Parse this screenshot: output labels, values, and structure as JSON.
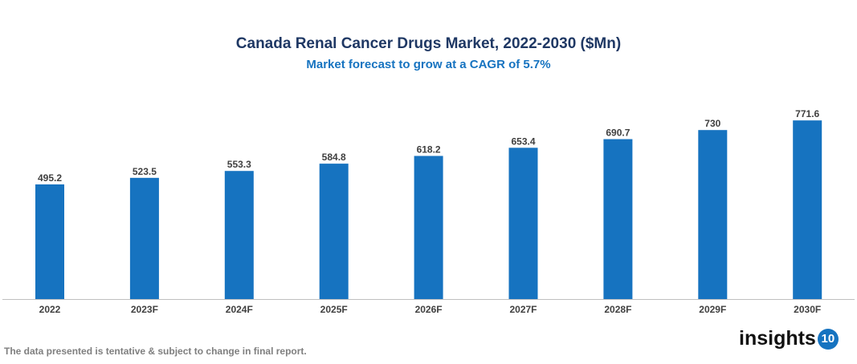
{
  "chart_data": {
    "type": "bar",
    "title": "Canada Renal Cancer Drugs Market, 2022-2030 ($Mn)",
    "subtitle": "Market forecast to grow at a CAGR of 5.7%",
    "categories": [
      "2022",
      "2023F",
      "2024F",
      "2025F",
      "2026F",
      "2027F",
      "2028F",
      "2029F",
      "2030F"
    ],
    "values": [
      495.2,
      523.5,
      553.3,
      584.8,
      618.2,
      653.4,
      690.7,
      730,
      771.6
    ],
    "xlabel": "",
    "ylabel": "",
    "ylim": [
      0,
      800
    ],
    "grid": false,
    "bar_color": "#1673c0"
  },
  "footer": {
    "disclaimer": "The data presented is tentative & subject to change in final report."
  },
  "logo": {
    "text": "insights",
    "badge": "10"
  }
}
